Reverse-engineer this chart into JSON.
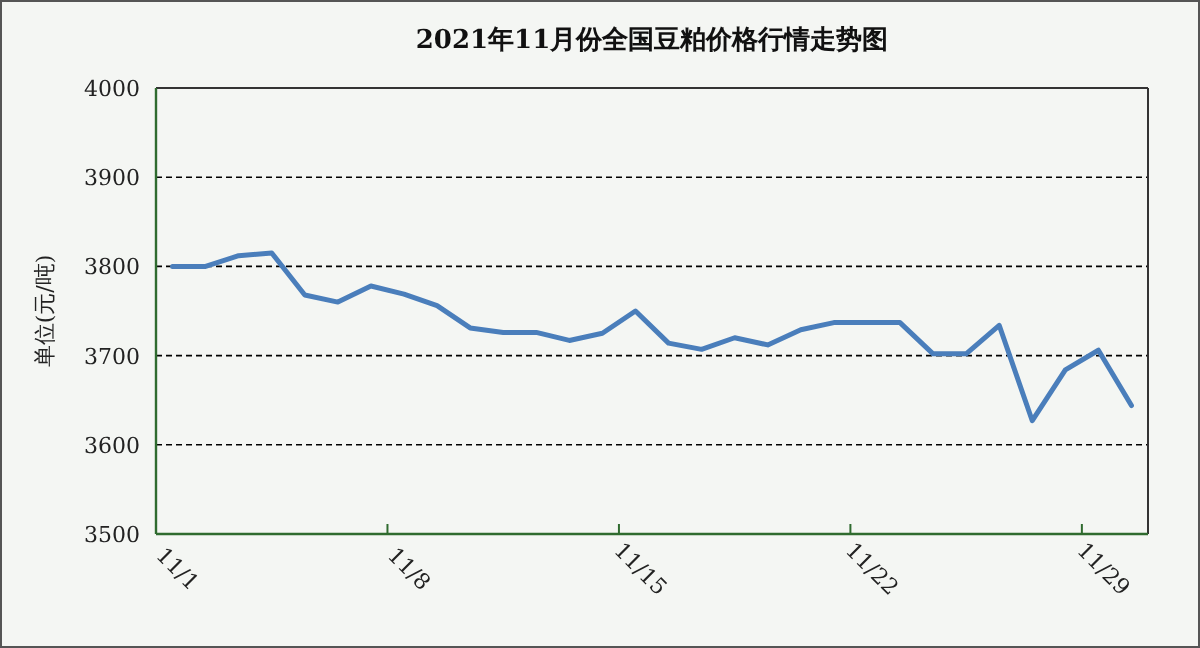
{
  "chart_data": {
    "type": "line",
    "title": "2021年11月份全国豆粕价格行情走势图",
    "ylabel": "单位(元/吨)",
    "categories": [
      "11/1",
      null,
      null,
      null,
      null,
      null,
      null,
      "11/8",
      null,
      null,
      null,
      null,
      null,
      null,
      "11/15",
      null,
      null,
      null,
      null,
      null,
      null,
      "11/22",
      null,
      null,
      null,
      null,
      null,
      null,
      "11/29",
      null
    ],
    "series": [
      {
        "color": "#4a7ebb",
        "values": [
          3800,
          3800,
          3812,
          3815,
          3768,
          3760,
          3778,
          3769,
          3756,
          3731,
          3726,
          3726,
          3717,
          3725,
          3750,
          3714,
          3707,
          3720,
          3712,
          3729,
          3737,
          3737,
          3737,
          3702,
          3702,
          3734,
          3627,
          3684,
          3706,
          3644
        ]
      }
    ],
    "ylim": [
      3500,
      4000
    ],
    "yticks": [
      3500,
      3600,
      3700,
      3800,
      3900,
      4000
    ],
    "grid": "y",
    "marker": "none",
    "line_style": "solid"
  }
}
